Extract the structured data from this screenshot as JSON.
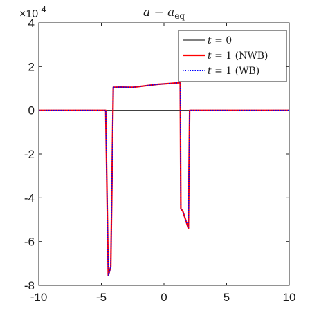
{
  "chart_data": {
    "type": "line",
    "title": "a − a_eq",
    "title_main": "a − a",
    "title_sub": "eq",
    "xlim": [
      -10,
      10
    ],
    "ylim": [
      -8,
      4
    ],
    "y_scale_exponent": "×10-4",
    "y_exponent_base": "×10",
    "y_exponent_power": "-4",
    "x_ticks": [
      -10,
      -5,
      0,
      5,
      10
    ],
    "y_ticks": [
      4,
      2,
      0,
      -2,
      -4,
      -6,
      -8
    ],
    "x_tick_labels": [
      "-10",
      "-5",
      "0",
      "5",
      "10"
    ],
    "y_tick_labels": [
      "4",
      "2",
      "0",
      "-2",
      "-4",
      "-6",
      "-8"
    ],
    "grid": false,
    "legend_position": "top-right",
    "series": [
      {
        "name": "t = 0",
        "color": "#000000",
        "style": "solid",
        "x": [
          -10,
          10
        ],
        "y": [
          0,
          0
        ]
      },
      {
        "name": "t = 1 (NWB)",
        "color": "#ff0000",
        "style": "solid",
        "x": [
          -10,
          -4.65,
          -4.45,
          -4.25,
          -4.05,
          -3.5,
          -2.5,
          -1.5,
          -0.5,
          0.5,
          1.3,
          1.35,
          1.5,
          1.95,
          2.05,
          10
        ],
        "y": [
          0,
          0,
          -7.55,
          -7.15,
          1.05,
          1.06,
          1.05,
          1.12,
          1.19,
          1.23,
          1.27,
          -4.5,
          -4.6,
          -5.4,
          0,
          0
        ]
      },
      {
        "name": "t = 1 (WB)",
        "color": "#0000ff",
        "style": "dotted",
        "x": [
          -10,
          -4.65,
          -4.45,
          -4.25,
          -4.05,
          -3.5,
          -2.5,
          -1.5,
          -0.5,
          0.5,
          1.3,
          1.35,
          1.5,
          1.95,
          2.05,
          10
        ],
        "y": [
          0,
          0,
          -7.55,
          -7.15,
          1.05,
          1.06,
          1.05,
          1.12,
          1.19,
          1.23,
          1.27,
          -4.5,
          -4.6,
          -5.4,
          0,
          0
        ]
      }
    ],
    "legend": [
      {
        "t": "t",
        "eq": " = 0",
        "suffix": ""
      },
      {
        "t": "t",
        "eq": " = 1",
        "suffix": " (NWB)"
      },
      {
        "t": "t",
        "eq": " = 1",
        "suffix": " (WB)"
      }
    ]
  }
}
